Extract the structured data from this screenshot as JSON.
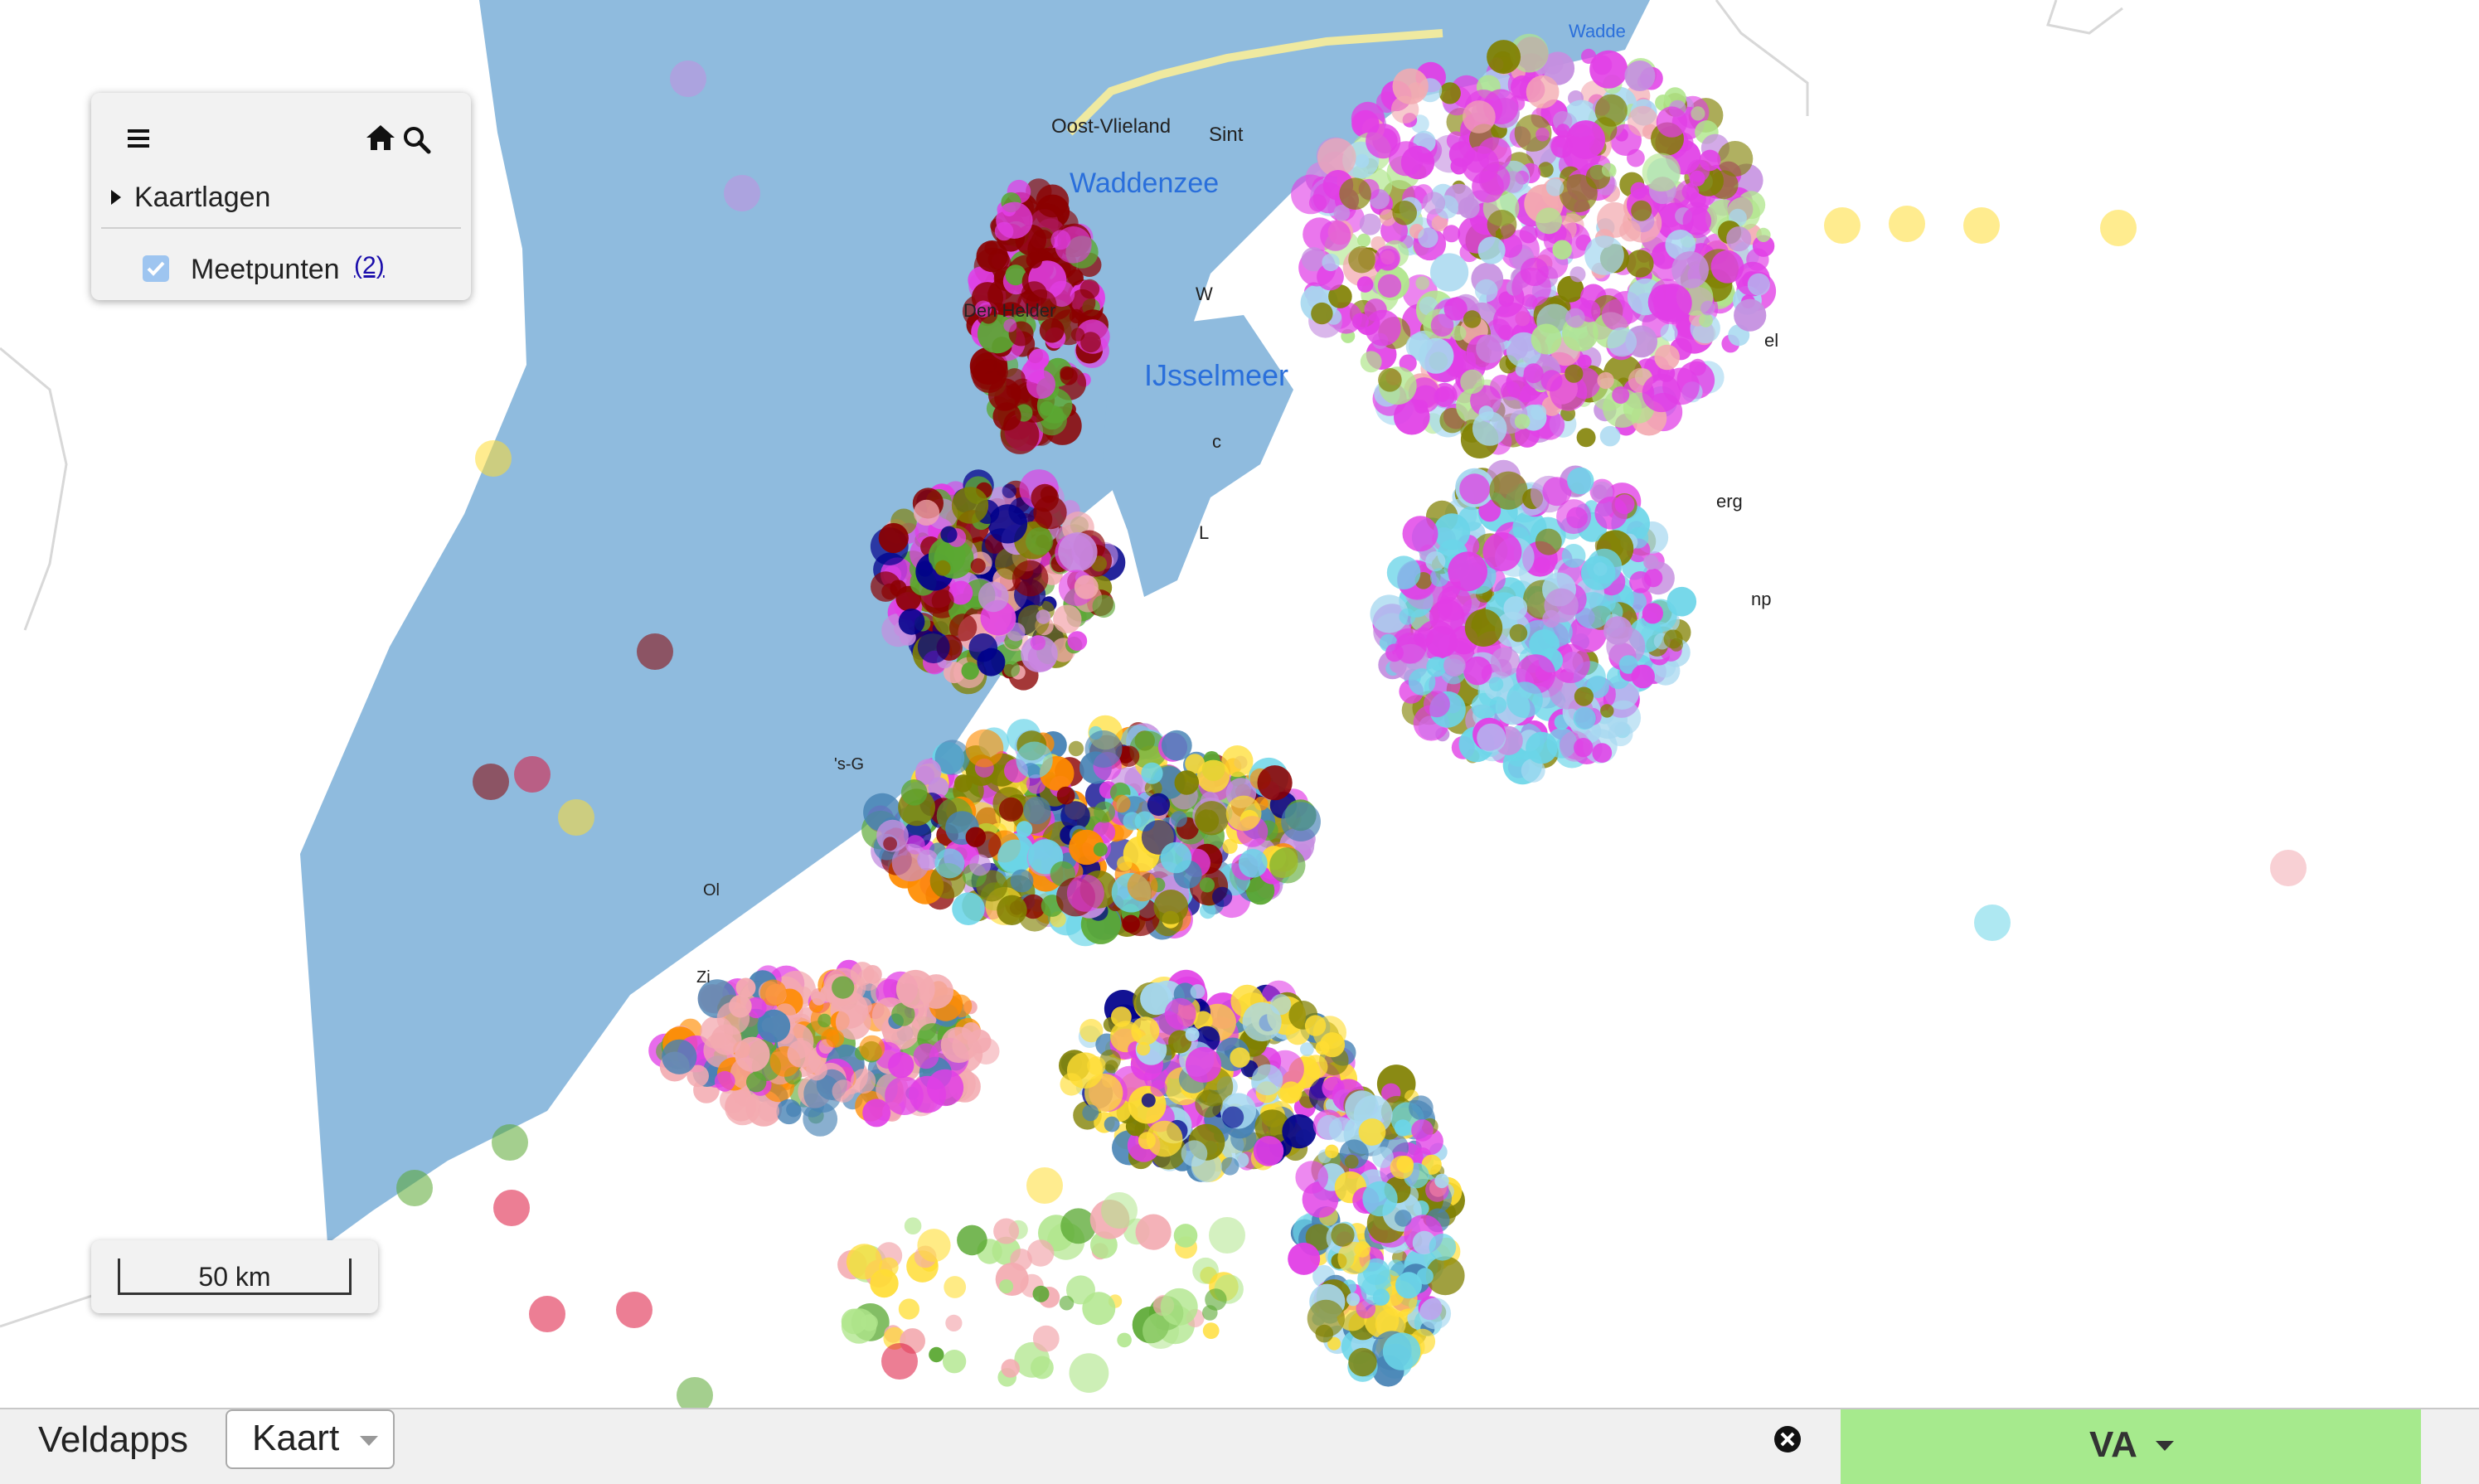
{
  "map": {
    "place_labels": [
      "Oost-Vlieland",
      "Sint",
      "Waddenzee",
      "Den Helder",
      "IJsselmeer",
      "'s-G",
      "Zi",
      "Wadde",
      "np",
      "el",
      "erg",
      "L",
      "c",
      "W",
      "Ol"
    ],
    "sea_color": "#8fbbde",
    "marker_colors": [
      "#8b0000",
      "#e13ee6",
      "#c58fe0",
      "#f3aab0",
      "#5aa832",
      "#00008b",
      "#ffdd33",
      "#6bd5e8",
      "#808000",
      "#a7d8f0",
      "#ff8c00",
      "#4682b4",
      "#b0e68c",
      "#dc143c"
    ]
  },
  "layer_panel": {
    "menu_icon": "hamburger-icon",
    "home_icon": "home-icon",
    "search_icon": "search-icon",
    "layers_label": "Kaartlagen",
    "layer_name": "Meetpunten",
    "layer_count": "(2)",
    "layer_checked": true
  },
  "scale": {
    "label": "50 km"
  },
  "bottombar": {
    "app_label": "Veldapps",
    "view_select": "Kaart",
    "close_icon": "close-circle-icon",
    "va_button": "VA"
  }
}
